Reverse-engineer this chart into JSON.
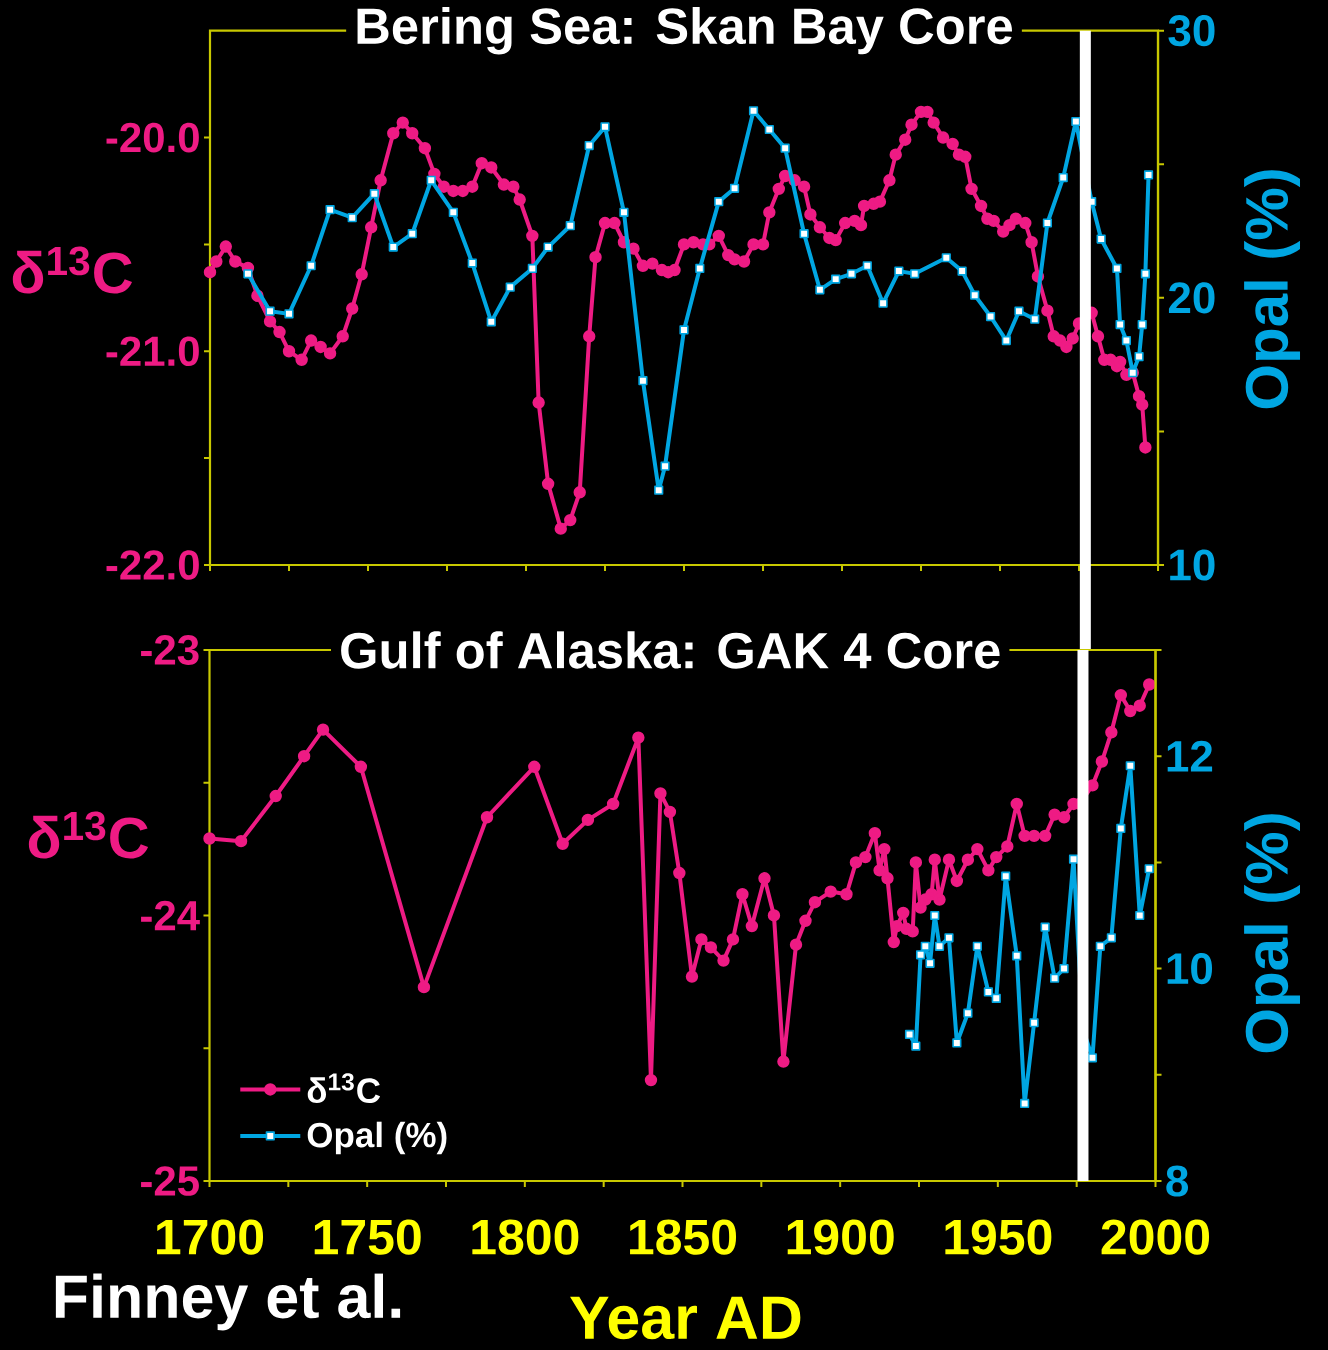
{
  "chart_data": [
    {
      "type": "line",
      "title": "Bering Sea: Skan Bay Core",
      "ylabel": "δ$^{13}$C",
      "y2label": "Opal (%)",
      "xlim": [
        1700,
        2000
      ],
      "xticks": [
        1700,
        1725,
        1750,
        1775,
        1800,
        1825,
        1850,
        1875,
        1900,
        1925,
        1950,
        1975,
        2000
      ],
      "ylim": [
        -22,
        -19.5
      ],
      "yticks": [
        {
          "value": -22,
          "label": "-22.0"
        },
        {
          "value": -21.5,
          "label": null
        },
        {
          "value": -21,
          "label": "-21.0"
        },
        {
          "value": -20.5,
          "label": null
        },
        {
          "value": -20,
          "label": "-20.0"
        }
      ],
      "y2lim": [
        10,
        30
      ],
      "y2ticks": [
        10,
        {
          "value": 15,
          "label": null
        },
        20,
        {
          "value": 25,
          "label": null
        },
        30
      ],
      "tick_labels": "y",
      "series": [
        {
          "color": "#ee1b84",
          "marker": "circle",
          "x": [
            1700,
            1702,
            1705,
            1708,
            1712,
            1715,
            1719,
            1722,
            1725,
            1729,
            1732,
            1735,
            1738,
            1742,
            1745,
            1748,
            1751,
            1754,
            1758,
            1761,
            1764,
            1768,
            1771,
            1774,
            1777,
            1780,
            1783,
            1786,
            1789,
            1793,
            1796,
            1798,
            1802,
            1804,
            1807,
            1811,
            1814,
            1817,
            1820,
            1822,
            1825,
            1828,
            1831,
            1834,
            1837,
            1840,
            1843,
            1845,
            1847,
            1850,
            1853,
            1856,
            1858,
            1861,
            1864,
            1866,
            1869,
            1872,
            1875,
            1877,
            1880,
            1882,
            1885,
            1888,
            1890,
            1893,
            1896,
            1898,
            1901,
            1904,
            1906,
            1907,
            1910,
            1912,
            1915,
            1917,
            1920,
            1922,
            1925,
            1927,
            1929,
            1932,
            1935,
            1937,
            1939,
            1941,
            1944,
            1946,
            1948,
            1951,
            1953,
            1955,
            1958,
            1960,
            1962,
            1965,
            1967,
            1969,
            1971,
            1973,
            1975,
            1979,
            1981,
            1983,
            1985,
            1987,
            1988,
            1990,
            1992,
            1994,
            1995,
            1996
          ],
          "values": [
            -20.63,
            -20.58,
            -20.51,
            -20.58,
            -20.61,
            -20.74,
            -20.86,
            -20.91,
            -21.0,
            -21.04,
            -20.95,
            -20.98,
            -21.01,
            -20.93,
            -20.8,
            -20.64,
            -20.42,
            -20.2,
            -19.98,
            -19.93,
            -19.98,
            -20.05,
            -20.17,
            -20.23,
            -20.25,
            -20.25,
            -20.23,
            -20.12,
            -20.14,
            -20.22,
            -20.23,
            -20.29,
            -20.46,
            -21.24,
            -21.62,
            -21.83,
            -21.79,
            -21.66,
            -20.93,
            -20.56,
            -20.4,
            -20.4,
            -20.49,
            -20.52,
            -20.6,
            -20.59,
            -20.62,
            -20.63,
            -20.62,
            -20.5,
            -20.49,
            -20.5,
            -20.5,
            -20.46,
            -20.55,
            -20.57,
            -20.58,
            -20.5,
            -20.5,
            -20.35,
            -20.24,
            -20.18,
            -20.2,
            -20.23,
            -20.36,
            -20.42,
            -20.47,
            -20.48,
            -20.4,
            -20.39,
            -20.41,
            -20.32,
            -20.31,
            -20.3,
            -20.2,
            -20.08,
            -20.01,
            -19.94,
            -19.88,
            -19.88,
            -19.93,
            -20.0,
            -20.03,
            -20.08,
            -20.09,
            -20.24,
            -20.32,
            -20.38,
            -20.39,
            -20.44,
            -20.41,
            -20.38,
            -20.4,
            -20.49,
            -20.65,
            -20.81,
            -20.93,
            -20.95,
            -20.98,
            -20.94,
            -20.87,
            -20.82,
            -20.93,
            -21.04,
            -21.04,
            -21.07,
            -21.05,
            -21.11,
            -21.1,
            -21.21,
            -21.25,
            -21.45
          ]
        },
        {
          "color": "#00a6e2",
          "marker": "square",
          "axis": "y2",
          "x": [
            1712,
            1719,
            1725,
            1732,
            1738,
            1745,
            1752,
            1758,
            1764,
            1770,
            1777,
            1783,
            1789,
            1795,
            1802,
            1807,
            1814,
            1820,
            1825,
            1831,
            1837,
            1842,
            1844,
            1850,
            1855,
            1861,
            1866,
            1872,
            1877,
            1882,
            1888,
            1893,
            1898,
            1903,
            1908,
            1913,
            1918,
            1923,
            1933,
            1938,
            1942,
            1947,
            1952,
            1956,
            1961,
            1965,
            1970,
            1974,
            1979,
            1982,
            1987,
            1988,
            1990,
            1992,
            1994,
            1995,
            1996,
            1997
          ],
          "values": [
            20.9,
            19.5,
            19.4,
            21.2,
            23.3,
            23.0,
            23.9,
            21.9,
            22.4,
            24.4,
            23.2,
            21.3,
            19.1,
            20.4,
            21.1,
            21.9,
            22.7,
            25.7,
            26.4,
            23.2,
            16.9,
            12.8,
            13.7,
            18.8,
            21.1,
            23.6,
            24.1,
            27.0,
            26.3,
            25.6,
            22.4,
            20.3,
            20.7,
            20.9,
            21.2,
            19.8,
            21.0,
            20.9,
            21.5,
            21.0,
            20.1,
            19.3,
            18.4,
            19.5,
            19.2,
            22.8,
            24.5,
            26.6,
            23.6,
            22.2,
            21.1,
            19.0,
            18.4,
            17.2,
            17.8,
            19.0,
            20.9,
            24.6
          ]
        }
      ],
      "ref_lines": [
        {
          "axis": "x",
          "value": 1977,
          "color": "#ffffff"
        }
      ]
    },
    {
      "type": "line",
      "title": "Gulf of Alaska: GAK 4 Core",
      "xlabel": "Year AD",
      "ylabel": "δ$^{13}$C",
      "y2label": "Opal (%)",
      "xlim": [
        1700,
        2000
      ],
      "xticks": [
        1700,
        {
          "value": 1725,
          "label": null
        },
        1750,
        {
          "value": 1775,
          "label": null
        },
        1800,
        {
          "value": 1825,
          "label": null
        },
        1850,
        {
          "value": 1875,
          "label": null
        },
        1900,
        {
          "value": 1925,
          "label": null
        },
        1950,
        {
          "value": 1975,
          "label": null
        },
        2000
      ],
      "ylim": [
        -25,
        -23
      ],
      "yticks": [
        -25,
        {
          "value": -24.5,
          "label": null
        },
        -24,
        {
          "value": -23.5,
          "label": null
        },
        -23
      ],
      "y2lim": [
        8,
        13
      ],
      "y2ticks": [
        8,
        {
          "value": 9,
          "label": null
        },
        10,
        {
          "value": 11,
          "label": null
        },
        12,
        {
          "value": 13,
          "label": null
        }
      ],
      "legend": "bottom left",
      "series": [
        {
          "name": "δ$^{13}$C",
          "color": "#ee1b84",
          "marker": "circle",
          "x": [
            1700,
            1710,
            1721,
            1730,
            1736,
            1748,
            1768,
            1788,
            1803,
            1812,
            1820,
            1828,
            1836,
            1840,
            1843,
            1846,
            1849,
            1853,
            1856,
            1859,
            1863,
            1866,
            1869,
            1872,
            1876,
            1879,
            1882,
            1886,
            1889,
            1892,
            1897,
            1902,
            1905,
            1908,
            1911,
            1912.5,
            1914,
            1915,
            1917,
            1918,
            1920,
            1921,
            1923,
            1924,
            1925.5,
            1927,
            1929,
            1930,
            1931.5,
            1934.5,
            1937,
            1940.5,
            1943.5,
            1947,
            1949.5,
            1953,
            1956,
            1958.5,
            1961.5,
            1965,
            1968,
            1971,
            1974,
            1976,
            1980,
            1983,
            1986,
            1989,
            1992,
            1995,
            1998
          ],
          "values": [
            -23.71,
            -23.72,
            -23.55,
            -23.4,
            -23.3,
            -23.44,
            -24.27,
            -23.63,
            -23.44,
            -23.73,
            -23.64,
            -23.58,
            -23.33,
            -24.62,
            -23.54,
            -23.61,
            -23.84,
            -24.23,
            -24.09,
            -24.12,
            -24.17,
            -24.09,
            -23.92,
            -24.04,
            -23.86,
            -24.0,
            -24.55,
            -24.11,
            -24.02,
            -23.95,
            -23.91,
            -23.92,
            -23.8,
            -23.78,
            -23.69,
            -23.83,
            -23.75,
            -23.86,
            -24.1,
            -24.04,
            -23.99,
            -24.05,
            -24.06,
            -23.8,
            -23.97,
            -23.94,
            -23.92,
            -23.79,
            -23.94,
            -23.79,
            -23.87,
            -23.79,
            -23.75,
            -23.83,
            -23.78,
            -23.74,
            -23.58,
            -23.7,
            -23.7,
            -23.7,
            -23.62,
            -23.63,
            -23.58,
            -23.58,
            -23.51,
            -23.42,
            -23.31,
            -23.17,
            -23.23,
            -23.21,
            -23.13
          ]
        },
        {
          "name": "Opal (%)",
          "color": "#00a6e2",
          "marker": "square",
          "axis": "y2",
          "x": [
            1922,
            1924,
            1925.5,
            1927,
            1928.5,
            1930,
            1931.5,
            1934.5,
            1937,
            1940.5,
            1943.5,
            1947,
            1949.5,
            1952.5,
            1956,
            1958.5,
            1961.5,
            1965,
            1968,
            1971,
            1974,
            1977,
            1980,
            1982.5,
            1986,
            1989,
            1992,
            1995,
            1998
          ],
          "values": [
            9.38,
            9.27,
            10.13,
            10.21,
            10.05,
            10.5,
            10.21,
            10.29,
            9.3,
            9.58,
            10.21,
            9.78,
            9.72,
            10.87,
            10.12,
            8.73,
            9.49,
            10.39,
            9.91,
            10.0,
            11.03,
            9.43,
            9.16,
            10.21,
            10.29,
            11.32,
            11.91,
            10.5,
            10.94
          ]
        }
      ],
      "ref_lines": [
        {
          "axis": "x",
          "value": 1977,
          "color": "#ffffff"
        }
      ],
      "annotations": [
        "Finney et al."
      ]
    }
  ]
}
